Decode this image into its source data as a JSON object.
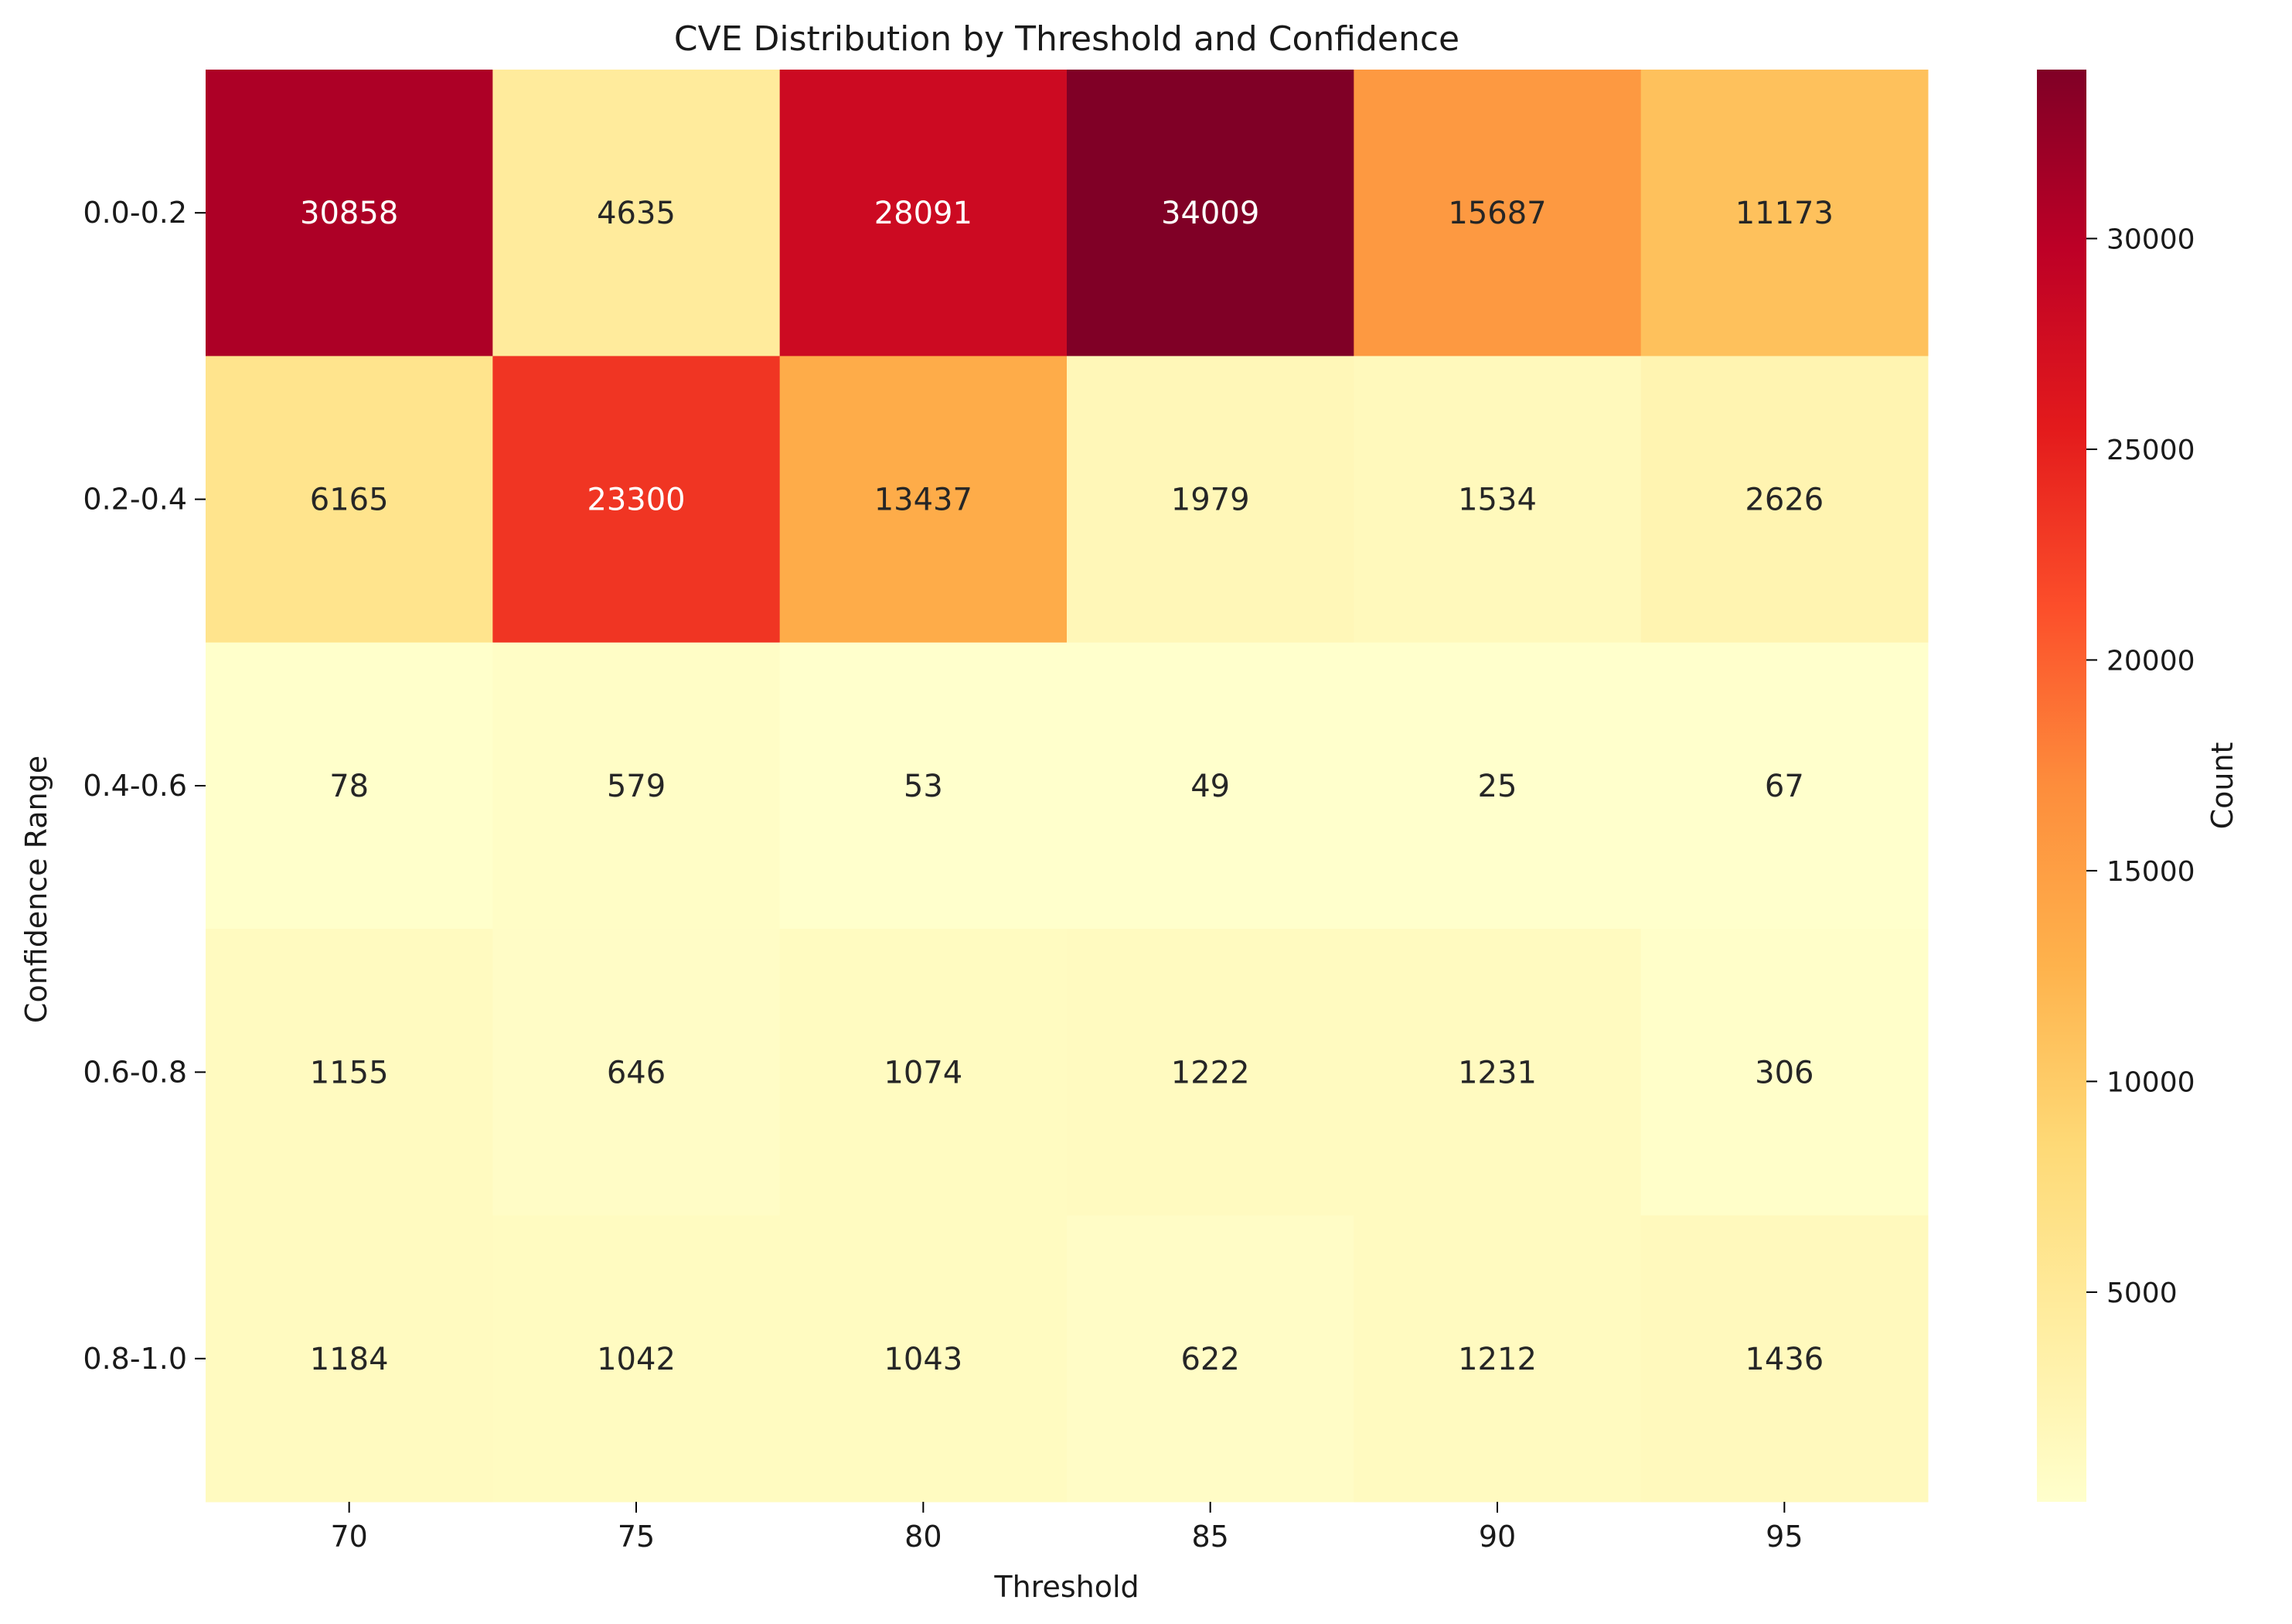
{
  "chart_data": {
    "type": "heatmap",
    "title": "CVE Distribution by Threshold and Confidence",
    "xlabel": "Threshold",
    "ylabel": "Confidence Range",
    "x_categories": [
      "70",
      "75",
      "80",
      "85",
      "90",
      "95"
    ],
    "y_categories": [
      "0.0-0.2",
      "0.2-0.4",
      "0.4-0.6",
      "0.6-0.8",
      "0.8-1.0"
    ],
    "values": [
      [
        30858,
        4635,
        28091,
        34009,
        15687,
        11173
      ],
      [
        6165,
        23300,
        13437,
        1979,
        1534,
        2626
      ],
      [
        78,
        579,
        53,
        49,
        25,
        67
      ],
      [
        1155,
        646,
        1074,
        1222,
        1231,
        306
      ],
      [
        1184,
        1042,
        1043,
        622,
        1212,
        1436
      ]
    ],
    "colorbar": {
      "label": "Count",
      "min": 25,
      "max": 34009,
      "ticks": [
        5000,
        10000,
        15000,
        20000,
        25000,
        30000
      ],
      "colormap": "YlOrRd",
      "colormap_stops": [
        "#ffffcc",
        "#ffeda0",
        "#fed976",
        "#feb24c",
        "#fd8d3c",
        "#fc4e2a",
        "#e31a1c",
        "#bd0026",
        "#800026"
      ]
    },
    "grid": false
  }
}
